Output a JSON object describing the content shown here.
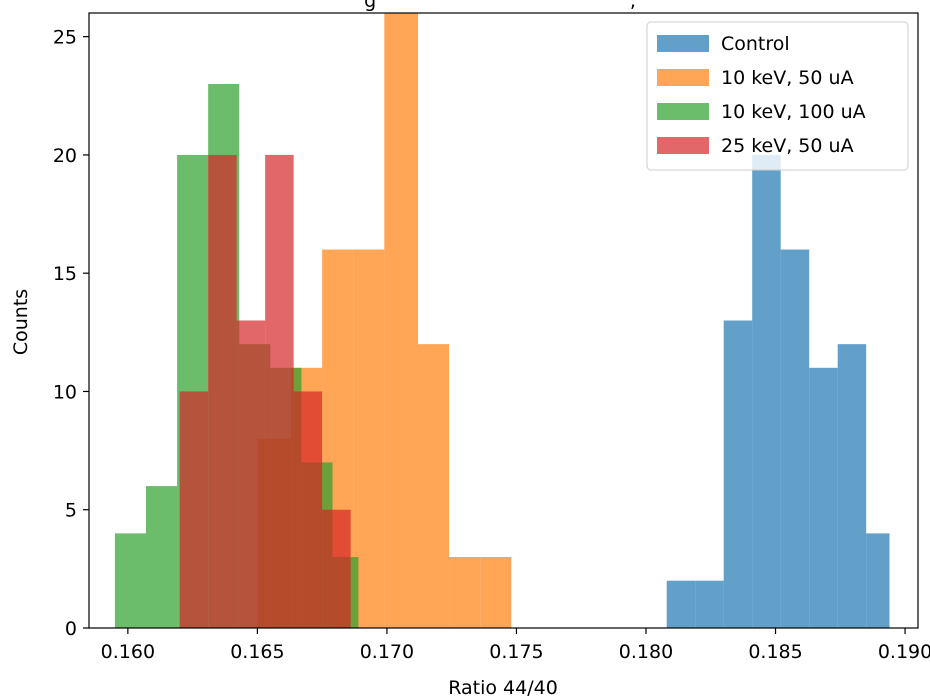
{
  "chart_data": {
    "type": "bar",
    "title_fragment": "g                                          ,",
    "xlabel": "Ratio 44/40",
    "ylabel": "Counts",
    "xlim": [
      0.1585,
      0.1905
    ],
    "ylim": [
      0,
      26
    ],
    "x_ticks": [
      0.16,
      0.165,
      0.17,
      0.175,
      0.18,
      0.185,
      0.19
    ],
    "x_tick_labels": [
      "0.160",
      "0.165",
      "0.170",
      "0.175",
      "0.180",
      "0.185",
      "0.190"
    ],
    "y_ticks": [
      0,
      5,
      10,
      15,
      20,
      25
    ],
    "y_tick_labels": [
      "0",
      "5",
      "10",
      "15",
      "20",
      "25"
    ],
    "legend_position": "upper right",
    "series": [
      {
        "name": "Control",
        "color": "#1f77b4",
        "alpha": 0.7,
        "bins": [
          {
            "x0": 0.1808,
            "x1": 0.1819,
            "count": 2
          },
          {
            "x0": 0.1819,
            "x1": 0.183,
            "count": 2
          },
          {
            "x0": 0.183,
            "x1": 0.1841,
            "count": 13
          },
          {
            "x0": 0.1841,
            "x1": 0.1852,
            "count": 20
          },
          {
            "x0": 0.1852,
            "x1": 0.1863,
            "count": 16
          },
          {
            "x0": 0.1863,
            "x1": 0.1874,
            "count": 11
          },
          {
            "x0": 0.1874,
            "x1": 0.1885,
            "count": 12
          },
          {
            "x0": 0.1885,
            "x1": 0.1894,
            "count": 4
          }
        ]
      },
      {
        "name": "10 keV, 50 uA",
        "color": "#ff7f0e",
        "alpha": 0.7,
        "bins": [
          {
            "x0": 0.1638,
            "x1": 0.165,
            "count": 0
          },
          {
            "x0": 0.165,
            "x1": 0.1663,
            "count": 8
          },
          {
            "x0": 0.1663,
            "x1": 0.1675,
            "count": 11
          },
          {
            "x0": 0.1675,
            "x1": 0.1687,
            "count": 16
          },
          {
            "x0": 0.1687,
            "x1": 0.1699,
            "count": 16
          },
          {
            "x0": 0.1699,
            "x1": 0.1712,
            "count": 27
          },
          {
            "x0": 0.1712,
            "x1": 0.1724,
            "count": 12
          },
          {
            "x0": 0.1724,
            "x1": 0.1736,
            "count": 3
          },
          {
            "x0": 0.1736,
            "x1": 0.1748,
            "count": 3
          }
        ]
      },
      {
        "name": "10 keV, 100 uA",
        "color": "#2ca02c",
        "alpha": 0.7,
        "bins": [
          {
            "x0": 0.1595,
            "x1": 0.1607,
            "count": 4
          },
          {
            "x0": 0.1607,
            "x1": 0.1619,
            "count": 6
          },
          {
            "x0": 0.1619,
            "x1": 0.1631,
            "count": 20
          },
          {
            "x0": 0.1631,
            "x1": 0.1643,
            "count": 23
          },
          {
            "x0": 0.1643,
            "x1": 0.1655,
            "count": 12
          },
          {
            "x0": 0.1655,
            "x1": 0.1667,
            "count": 11
          },
          {
            "x0": 0.1667,
            "x1": 0.1679,
            "count": 7
          },
          {
            "x0": 0.1679,
            "x1": 0.1689,
            "count": 3
          }
        ]
      },
      {
        "name": "25 keV, 50 uA",
        "color": "#d62728",
        "alpha": 0.7,
        "bins": [
          {
            "x0": 0.162,
            "x1": 0.1631,
            "count": 10
          },
          {
            "x0": 0.1631,
            "x1": 0.1642,
            "count": 20
          },
          {
            "x0": 0.1642,
            "x1": 0.1653,
            "count": 13
          },
          {
            "x0": 0.1653,
            "x1": 0.1664,
            "count": 20
          },
          {
            "x0": 0.1664,
            "x1": 0.1675,
            "count": 10
          },
          {
            "x0": 0.1675,
            "x1": 0.1686,
            "count": 5
          }
        ]
      }
    ]
  }
}
